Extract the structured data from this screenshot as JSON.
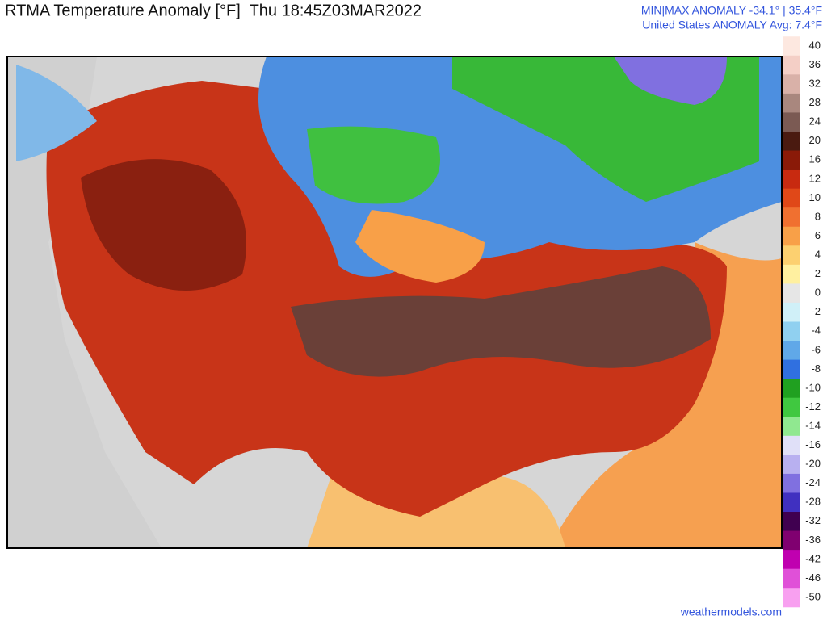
{
  "header": {
    "title": "RTMA Temperature Anomaly [°F]  Thu 18:45Z03MAR2022",
    "minmax": "MIN|MAX ANOMALY -34.1° | 35.4°F",
    "average": "United States ANOMALY Avg: 7.4°F"
  },
  "legend": {
    "levels": [
      40,
      36,
      32,
      28,
      24,
      20,
      16,
      12,
      10,
      8,
      6,
      4,
      2,
      0,
      -2,
      -4,
      -6,
      -8,
      -10,
      -12,
      -14,
      -16,
      -20,
      -24,
      -28,
      -32,
      -36,
      -42,
      -46,
      -50
    ],
    "colors": [
      "#fde8e0",
      "#f4cfc6",
      "#d9b1a8",
      "#a9877e",
      "#7b5a53",
      "#4a1a10",
      "#8a1a08",
      "#c82a10",
      "#e04818",
      "#f07030",
      "#f8a048",
      "#fcd070",
      "#fff0a0",
      "#e6e6e6",
      "#d0f0f8",
      "#90d0f0",
      "#60a8e8",
      "#3070e0",
      "#20a020",
      "#40c840",
      "#90e890",
      "#e0e0f8",
      "#b8b0f0",
      "#8070e0",
      "#4030c0",
      "#400050",
      "#800070",
      "#c000b0",
      "#e050d8",
      "#f8a0f0"
    ]
  },
  "footer": "weathermodels.com"
}
